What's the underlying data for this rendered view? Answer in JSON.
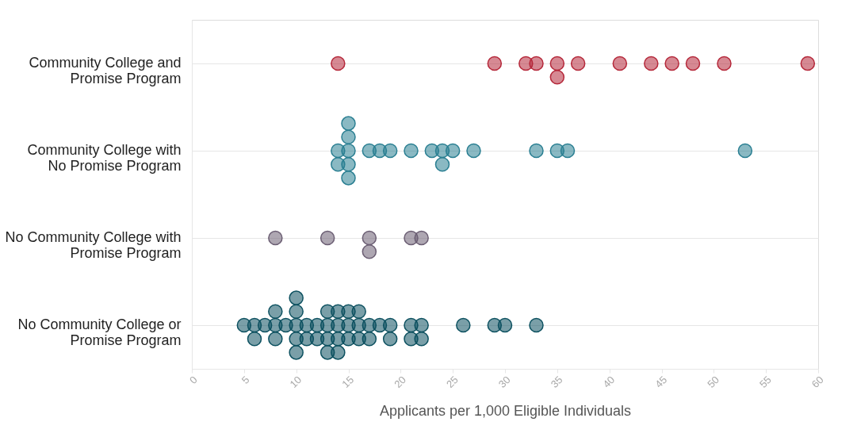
{
  "chart_data": {
    "type": "scatter",
    "orientation": "horizontal",
    "xlabel": "Applicants per 1,000 Eligible Individuals",
    "categories": [
      "Community College and\nPromise Program",
      "Community College with\nNo Promise Program",
      "No Community College with\nPromise Program",
      "No Community College or\nPromise Program"
    ],
    "xlim": [
      0,
      60
    ],
    "xticks": [
      0,
      5,
      10,
      15,
      20,
      25,
      30,
      35,
      40,
      45,
      50,
      55,
      60
    ],
    "grid": "y",
    "legend": false,
    "marker": "circle",
    "series": [
      {
        "color": "#b5283a",
        "x": [
          "Community College and\nPromise Program",
          "Community College and\nPromise Program",
          "Community College and\nPromise Program",
          "Community College and\nPromise Program",
          "Community College and\nPromise Program",
          "Community College and\nPromise Program",
          "Community College and\nPromise Program",
          "Community College and\nPromise Program",
          "Community College and\nPromise Program",
          "Community College and\nPromise Program",
          "Community College and\nPromise Program",
          "Community College and\nPromise Program",
          "Community College and\nPromise Program"
        ],
        "values": [
          14,
          29,
          32,
          33,
          35,
          35,
          37,
          41,
          44,
          46,
          48,
          51,
          59
        ]
      },
      {
        "color": "#2a7f92",
        "x": [
          "Community College with\nNo Promise Program",
          "Community College with\nNo Promise Program",
          "Community College with\nNo Promise Program",
          "Community College with\nNo Promise Program",
          "Community College with\nNo Promise Program",
          "Community College with\nNo Promise Program",
          "Community College with\nNo Promise Program",
          "Community College with\nNo Promise Program",
          "Community College with\nNo Promise Program",
          "Community College with\nNo Promise Program",
          "Community College with\nNo Promise Program",
          "Community College with\nNo Promise Program",
          "Community College with\nNo Promise Program",
          "Community College with\nNo Promise Program",
          "Community College with\nNo Promise Program",
          "Community College with\nNo Promise Program",
          "Community College with\nNo Promise Program",
          "Community College with\nNo Promise Program",
          "Community College with\nNo Promise Program",
          "Community College with\nNo Promise Program"
        ],
        "values": [
          14,
          14,
          15,
          15,
          15,
          15,
          15,
          17,
          18,
          19,
          21,
          23,
          24,
          24,
          25,
          27,
          33,
          35,
          36,
          53
        ]
      },
      {
        "color": "#6b5e73",
        "x": [
          "No Community College with\nPromise Program",
          "No Community College with\nPromise Program",
          "No Community College with\nPromise Program",
          "No Community College with\nPromise Program",
          "No Community College with\nPromise Program",
          "No Community College with\nPromise Program"
        ],
        "values": [
          8,
          13,
          17,
          17,
          21,
          22
        ]
      },
      {
        "color": "#0d5160",
        "x": [
          "No Community College or\nPromise Program",
          "No Community College or\nPromise Program",
          "No Community College or\nPromise Program",
          "No Community College or\nPromise Program",
          "No Community College or\nPromise Program",
          "No Community College or\nPromise Program",
          "No Community College or\nPromise Program",
          "No Community College or\nPromise Program",
          "No Community College or\nPromise Program",
          "No Community College or\nPromise Program",
          "No Community College or\nPromise Program",
          "No Community College or\nPromise Program",
          "No Community College or\nPromise Program",
          "No Community College or\nPromise Program",
          "No Community College or\nPromise Program",
          "No Community College or\nPromise Program",
          "No Community College or\nPromise Program",
          "No Community College or\nPromise Program",
          "No Community College or\nPromise Program",
          "No Community College or\nPromise Program",
          "No Community College or\nPromise Program",
          "No Community College or\nPromise Program",
          "No Community College or\nPromise Program",
          "No Community College or\nPromise Program",
          "No Community College or\nPromise Program",
          "No Community College or\nPromise Program",
          "No Community College or\nPromise Program",
          "No Community College or\nPromise Program",
          "No Community College or\nPromise Program",
          "No Community College or\nPromise Program",
          "No Community College or\nPromise Program",
          "No Community College or\nPromise Program",
          "No Community College or\nPromise Program",
          "No Community College or\nPromise Program",
          "No Community College or\nPromise Program",
          "No Community College or\nPromise Program",
          "No Community College or\nPromise Program",
          "No Community College or\nPromise Program",
          "No Community College or\nPromise Program",
          "No Community College or\nPromise Program",
          "No Community College or\nPromise Program",
          "No Community College or\nPromise Program",
          "No Community College or\nPromise Program",
          "No Community College or\nPromise Program"
        ],
        "values": [
          5,
          6,
          6,
          7,
          8,
          8,
          8,
          9,
          10,
          10,
          10,
          10,
          10,
          11,
          11,
          12,
          12,
          13,
          13,
          13,
          13,
          14,
          14,
          14,
          14,
          15,
          15,
          15,
          16,
          16,
          16,
          17,
          17,
          18,
          19,
          19,
          21,
          21,
          22,
          22,
          26,
          29,
          30,
          33
        ]
      }
    ]
  }
}
